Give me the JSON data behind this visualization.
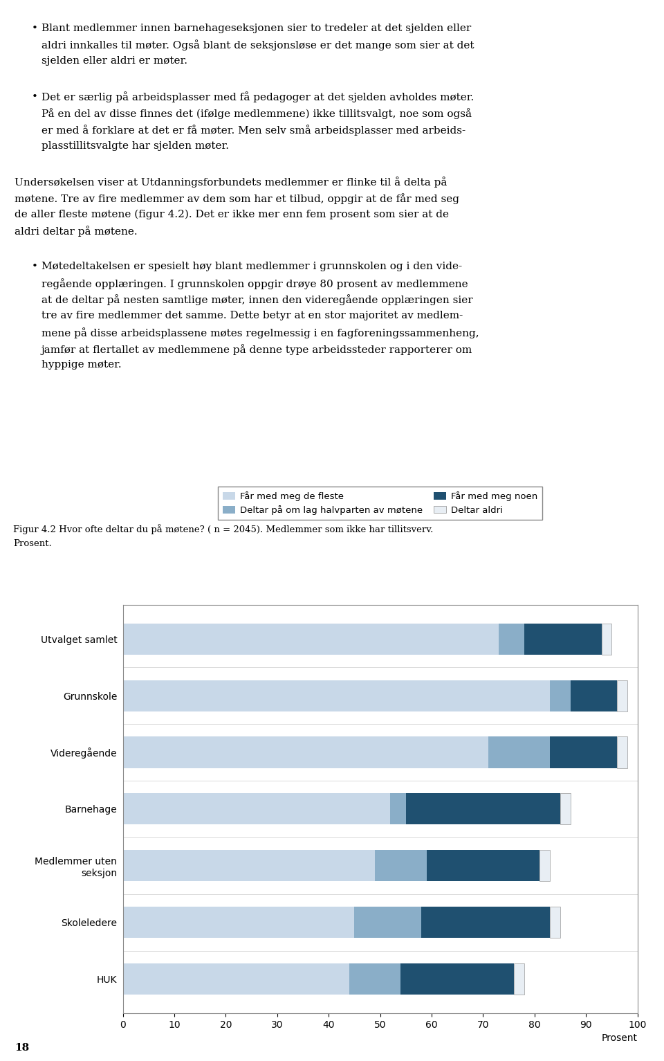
{
  "categories": [
    "Utvalget samlet",
    "Grunnskole",
    "Videregående",
    "Barnehage",
    "Medlemmer uten\nseksjon",
    "Skoleledere",
    "HUK"
  ],
  "series": {
    "Får med meg de fleste": [
      73,
      83,
      71,
      52,
      49,
      45,
      44
    ],
    "Deltar på om lag halvparten av møtene": [
      5,
      4,
      12,
      3,
      10,
      13,
      10
    ],
    "Får med meg noen": [
      15,
      9,
      13,
      30,
      22,
      25,
      22
    ],
    "Deltar aldri": [
      2,
      2,
      2,
      2,
      2,
      2,
      2
    ]
  },
  "colors": {
    "Får med meg de fleste": "#c8d8e8",
    "Deltar på om lag halvparten av møtene": "#8aaec8",
    "Får med meg noen": "#1f5070",
    "Deltar aldri": "#e8eef4"
  },
  "legend_order": [
    "Får med meg de fleste",
    "Deltar på om lag halvparten av møtene",
    "Får med meg noen",
    "Deltar aldri"
  ],
  "xlabel": "Prosent",
  "xlim": [
    0,
    100
  ],
  "xticks": [
    0,
    10,
    20,
    30,
    40,
    50,
    60,
    70,
    80,
    90,
    100
  ],
  "figure_caption_line1": "Figur 4.2 Hvor ofte deltar du på møtene? ( n = 2045). Medlemmer som ikke har tillitsverv.",
  "figure_caption_line2": "Prosent.",
  "background_color": "#ffffff",
  "bar_height": 0.55,
  "text_paragraphs": [
    {
      "bullet": true,
      "lines": [
        "Blant medlemmer innen barnehageseksjonen sier to tredeler at det sjelden eller",
        "aldri innkalles til møter. Også blant de seksjonsløse er det mange som sier at det",
        "sjelden eller aldri er møter."
      ]
    },
    {
      "bullet": true,
      "lines": [
        "Det er særlig på arbeidsplasser med få pedagoger at det sjelden avholdes møter.",
        "På en del av disse finnes det (ifølge medlemmene) ikke tillitsvalgt, noe som også",
        "er med å forklare at det er få møter. Men selv små arbeidsplasser med arbeids-",
        "plasstillitsvalgte har sjelden møter."
      ]
    },
    {
      "bullet": false,
      "lines": [
        "Undersøkelsen viser at Utdanningsforbundets medlemmer er flinke til å delta på",
        "møtene. Tre av fire medlemmer av dem som har et tilbud, oppgir at de får med seg",
        "de aller fleste møtene (figur 4.2). Det er ikke mer enn fem prosent som sier at de",
        "aldri deltar på møtene."
      ]
    },
    {
      "bullet": true,
      "lines": [
        "Møtedeltakelsen er spesielt høy blant medlemmer i grunnskolen og i den vide-",
        "regående opplæringen. I grunnskolen oppgir drøye 80 prosent av medlemmene",
        "at de deltar på nesten samtlige møter, innen den videregående opplæringen sier",
        "tre av fire medlemmer det samme. Dette betyr at en stor majoritet av medlem-",
        "mene på disse arbeidsplassene møtes regelmessig i en fagforeningssammenheng,",
        "jamfør at flertallet av medlemmene på denne type arbeidssteder rapporterer om",
        "hyppige møter."
      ]
    }
  ],
  "page_number": "18"
}
